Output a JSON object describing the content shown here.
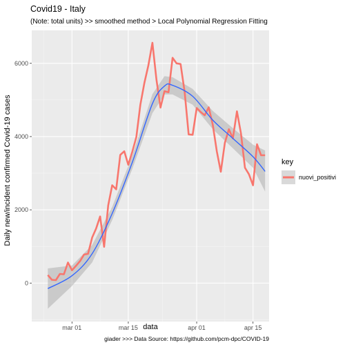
{
  "chart_data": {
    "type": "line",
    "title": "Covid19 - Italy",
    "subtitle": "(Note: total units) >> smoothed method > Local Polynomial Regression Fitting",
    "xlabel": "data",
    "ylabel": "Daily new/incident confirmed Covid-19 cases",
    "caption": "giader >>> Data Source: https://github.com/pcm-dpc/COVID-19",
    "x_ticks": [
      {
        "date": "2020-03-01",
        "label": "mar 01"
      },
      {
        "date": "2020-03-15",
        "label": "mar 15"
      },
      {
        "date": "2020-04-01",
        "label": "apr 01"
      },
      {
        "date": "2020-04-15",
        "label": "apr 15"
      }
    ],
    "y_ticks": [
      0,
      2000,
      4000,
      6000
    ],
    "xlim": [
      "2020-02-20",
      "2020-04-19"
    ],
    "ylim": [
      -1050,
      6900
    ],
    "grid": true,
    "legend": {
      "title": "key",
      "position": "right"
    },
    "series": [
      {
        "name": "nuovi_positivi",
        "color": "#f8766d",
        "x": [
          "2020-02-24",
          "2020-02-25",
          "2020-02-26",
          "2020-02-27",
          "2020-02-28",
          "2020-02-29",
          "2020-03-01",
          "2020-03-02",
          "2020-03-03",
          "2020-03-04",
          "2020-03-05",
          "2020-03-06",
          "2020-03-07",
          "2020-03-08",
          "2020-03-09",
          "2020-03-10",
          "2020-03-11",
          "2020-03-12",
          "2020-03-13",
          "2020-03-14",
          "2020-03-15",
          "2020-03-16",
          "2020-03-17",
          "2020-03-18",
          "2020-03-19",
          "2020-03-20",
          "2020-03-21",
          "2020-03-22",
          "2020-03-23",
          "2020-03-24",
          "2020-03-25",
          "2020-03-26",
          "2020-03-27",
          "2020-03-28",
          "2020-03-29",
          "2020-03-30",
          "2020-03-31",
          "2020-04-01",
          "2020-04-02",
          "2020-04-03",
          "2020-04-04",
          "2020-04-05",
          "2020-04-06",
          "2020-04-07",
          "2020-04-08",
          "2020-04-09",
          "2020-04-10",
          "2020-04-11",
          "2020-04-12",
          "2020-04-13",
          "2020-04-14",
          "2020-04-15",
          "2020-04-16",
          "2020-04-17",
          "2020-04-18"
        ],
        "values": [
          220,
          90,
          80,
          250,
          240,
          560,
          350,
          470,
          600,
          780,
          800,
          1240,
          1490,
          1820,
          990,
          2120,
          2670,
          2560,
          3500,
          3600,
          3230,
          3590,
          3990,
          4870,
          5470,
          5950,
          6560,
          5560,
          4790,
          5240,
          5210,
          6150,
          6000,
          5980,
          5220,
          4060,
          4050,
          4780,
          4670,
          4580,
          4800,
          4320,
          3600,
          3040,
          3830,
          4200,
          3950,
          4690,
          4090,
          3150,
          2970,
          2670,
          3790,
          3490,
          3490
        ]
      }
    ],
    "smooth": {
      "name": "loess",
      "color": "#3366ff",
      "band_color": "#999999",
      "x": [
        "2020-02-24",
        "2020-03-01",
        "2020-03-06",
        "2020-03-11",
        "2020-03-16",
        "2020-03-21",
        "2020-03-24",
        "2020-03-26",
        "2020-03-31",
        "2020-04-05",
        "2020-04-10",
        "2020-04-15",
        "2020-04-18"
      ],
      "values": [
        -150,
        200,
        800,
        1900,
        3300,
        4900,
        5380,
        5400,
        5100,
        4450,
        3950,
        3450,
        3050
      ],
      "lower": [
        -700,
        -80,
        560,
        1720,
        3120,
        4640,
        5150,
        5150,
        4870,
        4200,
        3680,
        3150,
        2500
      ],
      "upper": [
        400,
        480,
        1040,
        2080,
        3480,
        5160,
        5650,
        5620,
        5300,
        4700,
        4230,
        3780,
        3620
      ]
    }
  }
}
